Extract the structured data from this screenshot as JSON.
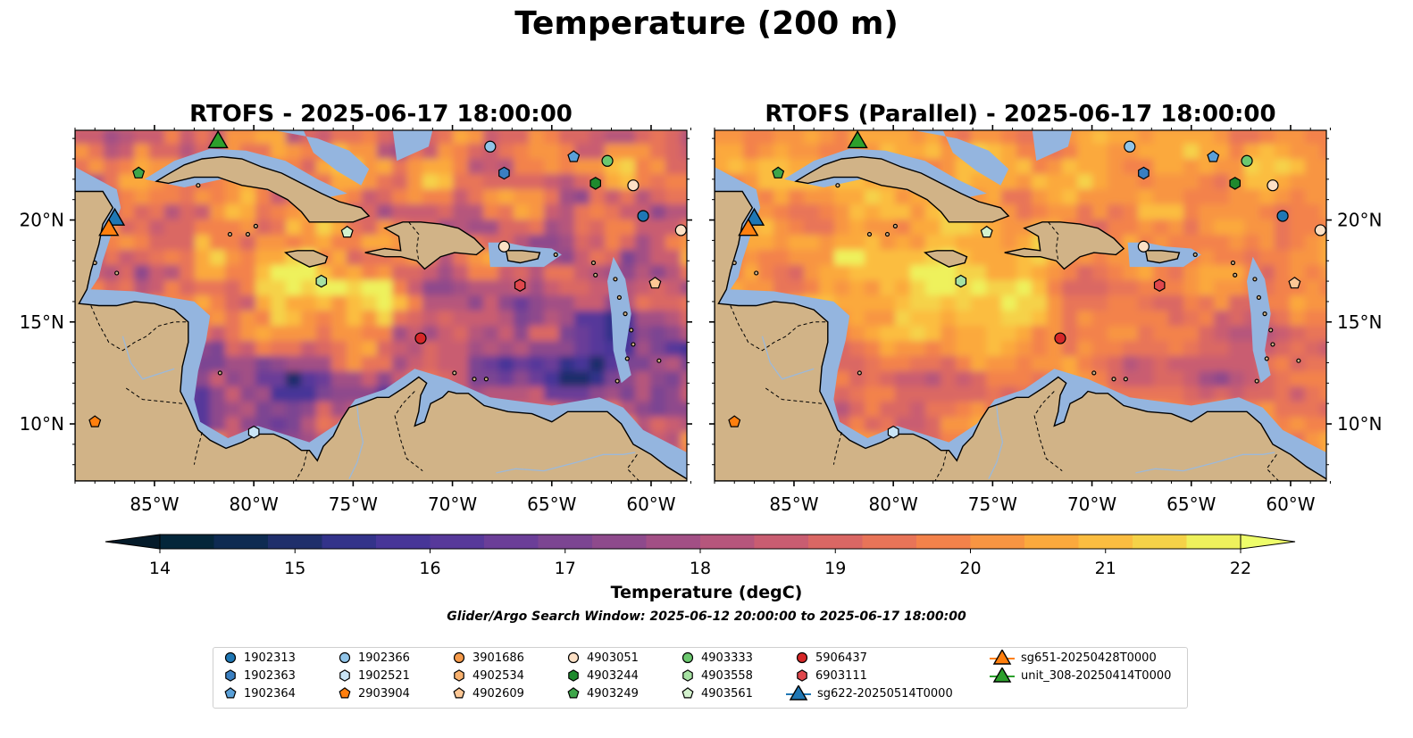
{
  "figure": {
    "suptitle": "Temperature (200 m)",
    "search_window": "Glider/Argo Search Window: 2025-06-12 20:00:00 to 2025-06-17 18:00:00"
  },
  "panels": [
    {
      "title": "RTOFS - 2025-06-17 18:00:00"
    },
    {
      "title": "RTOFS (Parallel) - 2025-06-17 18:00:00"
    }
  ],
  "map_axes": {
    "lon_ticks": [
      "85°W",
      "80°W",
      "75°W",
      "70°W",
      "65°W",
      "60°W"
    ],
    "lat_ticks": [
      "20°N",
      "15°N",
      "10°N"
    ]
  },
  "colorbar": {
    "label": "Temperature (degC)",
    "ticks": [
      "14",
      "15",
      "16",
      "17",
      "18",
      "19",
      "20",
      "21",
      "22"
    ],
    "colors": [
      "#04263a",
      "#0e2b52",
      "#1f2f6b",
      "#33338a",
      "#473698",
      "#57399a",
      "#6b3e98",
      "#7c4592",
      "#8e4a8c",
      "#a24f85",
      "#b6567c",
      "#c95d71",
      "#da6764",
      "#e87458",
      "#f3824b",
      "#f89542",
      "#fba93d",
      "#fbbd40",
      "#f5d248",
      "#eef15c"
    ],
    "under_color": "#051b2a",
    "over_color": "#eefd6a"
  },
  "chart_data": {
    "type": "scatter",
    "xlabel": "",
    "ylabel": "",
    "xlim": [
      -89,
      -58.2
    ],
    "ylim": [
      7.2,
      24.4
    ],
    "panels": [
      {
        "title": "RTOFS - 2025-06-17 18:00:00",
        "points": [
          {
            "name": "1902313",
            "lon": -60.4,
            "lat": 20.2
          },
          {
            "name": "1902363",
            "lon": -67.4,
            "lat": 22.3
          },
          {
            "name": "1902364",
            "lon": -63.9,
            "lat": 23.1
          },
          {
            "name": "1902366",
            "lon": -68.1,
            "lat": 23.6
          },
          {
            "name": "1902521",
            "lon": -80.0,
            "lat": 9.6
          },
          {
            "name": "2903904",
            "lon": -88.0,
            "lat": 10.1
          },
          {
            "name": "4903051",
            "lon": -58.5,
            "lat": 19.5
          },
          {
            "name": "4903051",
            "lon": -67.4,
            "lat": 18.7
          },
          {
            "name": "4903051",
            "lon": -60.9,
            "lat": 21.7
          },
          {
            "name": "4902609",
            "lon": -59.8,
            "lat": 16.9
          },
          {
            "name": "4903244",
            "lon": -62.8,
            "lat": 21.8
          },
          {
            "name": "4903249",
            "lon": -85.8,
            "lat": 22.3
          },
          {
            "name": "4903333",
            "lon": -62.2,
            "lat": 22.9
          },
          {
            "name": "4903558",
            "lon": -76.6,
            "lat": 17.0
          },
          {
            "name": "4903561",
            "lon": -75.3,
            "lat": 19.4
          },
          {
            "name": "5906437",
            "lon": -71.6,
            "lat": 14.2
          },
          {
            "name": "6903111",
            "lon": -66.6,
            "lat": 16.8
          },
          {
            "name": "sg622-20250514T0000",
            "lon": -87.0,
            "lat": 20.1
          },
          {
            "name": "sg651-20250428T0000",
            "lon": -87.3,
            "lat": 19.6
          },
          {
            "name": "unit_308-20250414T0000",
            "lon": -81.8,
            "lat": 23.9
          }
        ]
      },
      {
        "title": "RTOFS (Parallel) - 2025-06-17 18:00:00",
        "points": [
          {
            "name": "1902313",
            "lon": -60.4,
            "lat": 20.2
          },
          {
            "name": "1902363",
            "lon": -67.4,
            "lat": 22.3
          },
          {
            "name": "1902364",
            "lon": -63.9,
            "lat": 23.1
          },
          {
            "name": "1902366",
            "lon": -68.1,
            "lat": 23.6
          },
          {
            "name": "1902521",
            "lon": -80.0,
            "lat": 9.6
          },
          {
            "name": "2903904",
            "lon": -88.0,
            "lat": 10.1
          },
          {
            "name": "4903051",
            "lon": -58.5,
            "lat": 19.5
          },
          {
            "name": "4903051",
            "lon": -67.4,
            "lat": 18.7
          },
          {
            "name": "4903051",
            "lon": -60.9,
            "lat": 21.7
          },
          {
            "name": "4902609",
            "lon": -59.8,
            "lat": 16.9
          },
          {
            "name": "4903244",
            "lon": -62.8,
            "lat": 21.8
          },
          {
            "name": "4903249",
            "lon": -85.8,
            "lat": 22.3
          },
          {
            "name": "4903333",
            "lon": -62.2,
            "lat": 22.9
          },
          {
            "name": "4903558",
            "lon": -76.6,
            "lat": 17.0
          },
          {
            "name": "4903561",
            "lon": -75.3,
            "lat": 19.4
          },
          {
            "name": "5906437",
            "lon": -71.6,
            "lat": 14.2
          },
          {
            "name": "6903111",
            "lon": -66.6,
            "lat": 16.8
          },
          {
            "name": "sg622-20250514T0000",
            "lon": -87.0,
            "lat": 20.1
          },
          {
            "name": "sg651-20250428T0000",
            "lon": -87.3,
            "lat": 19.6
          },
          {
            "name": "unit_308-20250414T0000",
            "lon": -81.8,
            "lat": 23.9
          }
        ]
      }
    ]
  },
  "legend": {
    "entries": [
      {
        "label": "1902313",
        "marker": "circle",
        "color": "#1f77b4"
      },
      {
        "label": "1902363",
        "marker": "hexagon",
        "color": "#3a7fc1"
      },
      {
        "label": "1902364",
        "marker": "pentagon",
        "color": "#5aa0d8"
      },
      {
        "label": "1902366",
        "marker": "circle",
        "color": "#90c4e8"
      },
      {
        "label": "1902521",
        "marker": "hexagon",
        "color": "#c9e4f5"
      },
      {
        "label": "2903904",
        "marker": "pentagon",
        "color": "#ff7f0e"
      },
      {
        "label": "3901686",
        "marker": "circle",
        "color": "#f59a4a"
      },
      {
        "label": "4902534",
        "marker": "hexagon",
        "color": "#f8b16e"
      },
      {
        "label": "4902609",
        "marker": "pentagon",
        "color": "#fcc795"
      },
      {
        "label": "4903051",
        "marker": "circle",
        "color": "#fde0c5"
      },
      {
        "label": "4903244",
        "marker": "hexagon",
        "color": "#1f8a2e"
      },
      {
        "label": "4903249",
        "marker": "pentagon",
        "color": "#3ea64a"
      },
      {
        "label": "4903333",
        "marker": "circle",
        "color": "#6cc86f"
      },
      {
        "label": "4903558",
        "marker": "hexagon",
        "color": "#a6e1a2"
      },
      {
        "label": "4903561",
        "marker": "pentagon",
        "color": "#d3f2cd"
      },
      {
        "label": "5906437",
        "marker": "circle",
        "color": "#d62728"
      },
      {
        "label": "6903111",
        "marker": "hexagon",
        "color": "#e0474c"
      },
      {
        "label": "sg622-20250514T0000",
        "marker": "triangle",
        "color": "#1f77b4"
      },
      {
        "label": "sg651-20250428T0000",
        "marker": "triangle",
        "color": "#ff7f0e"
      },
      {
        "label": "unit_308-20250414T0000",
        "marker": "triangle",
        "color": "#2ca02c"
      }
    ]
  }
}
